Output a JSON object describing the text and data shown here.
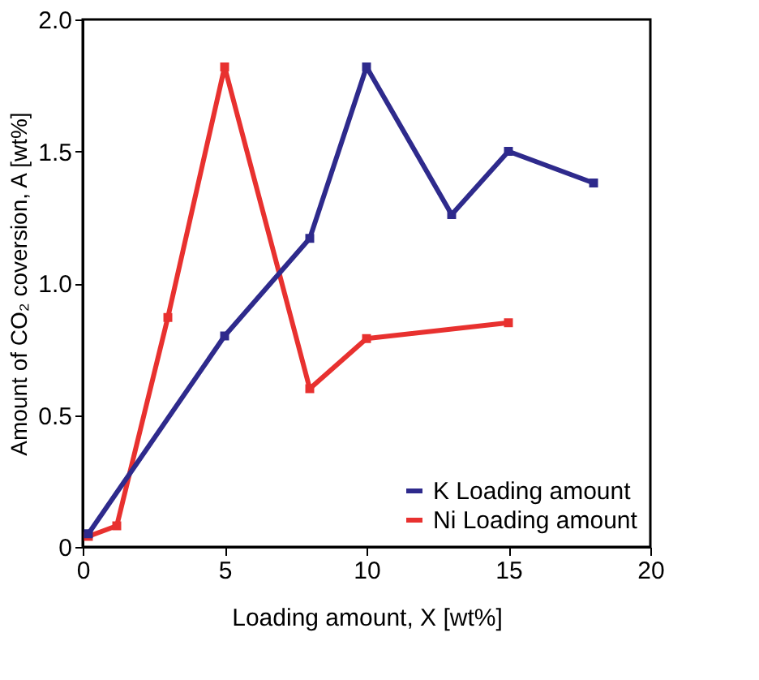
{
  "chart_data": {
    "type": "line",
    "xlabel": "Loading amount, X [wt%]",
    "ylabel": "Amount of CO₂ coversion, A [wt%]",
    "xlim": [
      0,
      20
    ],
    "xticks": [
      0,
      5,
      10,
      15,
      20
    ],
    "ylim": [
      0,
      2
    ],
    "yticks": [
      0,
      0.5,
      {
        "value": 1,
        "label": "1.0"
      },
      {
        "value": 1.5,
        "label": "1.5"
      },
      {
        "value": 2,
        "label": "2.0"
      }
    ],
    "grid": false,
    "legend": "bottom right",
    "marker": "square",
    "line_style": "solid",
    "series": [
      {
        "name": "K Loading amount",
        "color": "#2e2a8c",
        "x": [
          0.2,
          5,
          8,
          10,
          13,
          15,
          18
        ],
        "values": [
          0.05,
          0.8,
          1.17,
          1.82,
          1.26,
          1.5,
          1.38
        ]
      },
      {
        "name": "Ni Loading amount",
        "color": "#e8312f",
        "x": [
          0.2,
          1.2,
          3,
          5,
          8,
          10,
          15
        ],
        "values": [
          0.04,
          0.08,
          0.87,
          1.82,
          0.6,
          0.79,
          0.85
        ]
      }
    ]
  }
}
